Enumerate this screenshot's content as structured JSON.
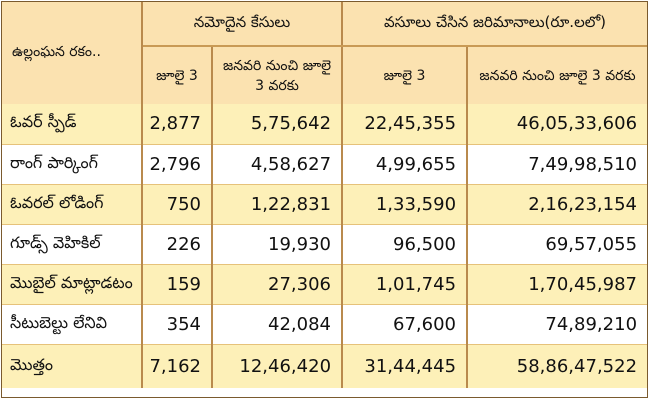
{
  "table": {
    "violation_header": "ఉల్లంఘన రకం..",
    "group_cases": "నమోదైన కేసులు",
    "group_fines": "వసూలు చేసిన జరిమానాలు(రూ.లలో)",
    "sub_july3": "జూలై 3",
    "sub_jan_to_july3": "జనవరి నుంచి జూలై 3 వరకు",
    "rows": [
      {
        "type": "ఓవర్ స్పీడ్",
        "cases_july3": "2,877",
        "cases_total": "5,75,642",
        "fines_july3": "22,45,355",
        "fines_total": "46,05,33,606"
      },
      {
        "type": "రాంగ్ పార్కింగ్",
        "cases_july3": "2,796",
        "cases_total": "4,58,627",
        "fines_july3": "4,99,655",
        "fines_total": "7,49,98,510"
      },
      {
        "type": "ఓవరల్ లోడింగ్",
        "cases_july3": "750",
        "cases_total": "1,22,831",
        "fines_july3": "1,33,590",
        "fines_total": "2,16,23,154"
      },
      {
        "type": "గూడ్స్ వెహికిల్",
        "cases_july3": "226",
        "cases_total": "19,930",
        "fines_july3": "96,500",
        "fines_total": "69,57,055"
      },
      {
        "type": "మొబైల్ మాట్లాడటం",
        "cases_july3": "159",
        "cases_total": "27,306",
        "fines_july3": "1,01,745",
        "fines_total": "1,70,45,987"
      },
      {
        "type": "సీటుబెల్టు లేనివి",
        "cases_july3": "354",
        "cases_total": "42,084",
        "fines_july3": "67,600",
        "fines_total": "74,89,210"
      },
      {
        "type": "మొత్తం",
        "cases_july3": "7,162",
        "cases_total": "12,46,420",
        "fines_july3": "31,44,445",
        "fines_total": "58,86,47,522"
      }
    ]
  }
}
